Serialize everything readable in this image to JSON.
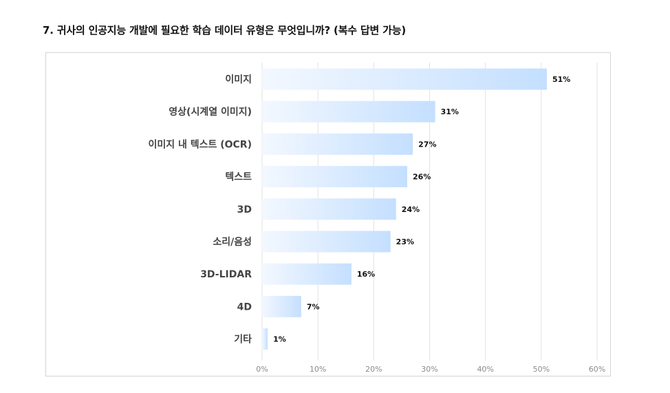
{
  "title": "7. 귀사의 인공지능 개발에 필요한 학습 데이터 유형은 무엇입니까? (복수 답변 가능)",
  "chart_data": {
    "type": "bar",
    "orientation": "horizontal",
    "title": "7. 귀사의 인공지능 개발에 필요한 학습 데이터 유형은 무엇입니까? (복수 답변 가능)",
    "categories": [
      "이미지",
      "영상(시계열 이미지)",
      "이미지 내 텍스트 (OCR)",
      "텍스트",
      "3D",
      "소리/음성",
      "3D-LIDAR",
      "4D",
      "기타"
    ],
    "values": [
      51,
      31,
      27,
      26,
      24,
      23,
      16,
      7,
      1
    ],
    "value_labels": [
      "51%",
      "31%",
      "27%",
      "26%",
      "24%",
      "23%",
      "16%",
      "7%",
      "1%"
    ],
    "xlim": [
      0,
      60
    ],
    "xticks": [
      0,
      10,
      20,
      30,
      40,
      50,
      60
    ],
    "xtick_labels": [
      "0%",
      "10%",
      "20%",
      "30%",
      "40%",
      "50%",
      "60%"
    ],
    "grid": true,
    "bar_color_light": "#f3f8ff",
    "bar_color_dark": "#c4dfff"
  }
}
